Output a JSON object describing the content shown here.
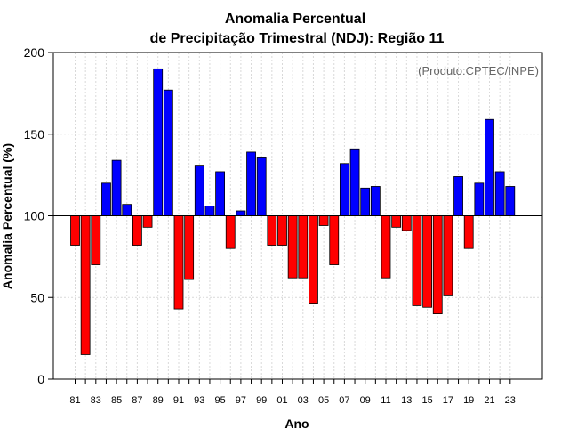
{
  "chart_data": {
    "type": "bar",
    "title_line1": "Anomalia Percentual",
    "title_line2": "de Precipitação Trimestral (NDJ): Região 11",
    "xlabel": "Ano",
    "ylabel": "Anomalia Percentual (%)",
    "credit": "(Produto:CPTEC/INPE)",
    "ylim": [
      0,
      200
    ],
    "yticks": [
      "0",
      "50",
      "100",
      "150",
      "200"
    ],
    "reference_value": 100,
    "colors": {
      "above": "#0000ff",
      "below": "#ff0000",
      "edge": "#000000"
    },
    "categories": [
      "81",
      "82",
      "83",
      "84",
      "85",
      "86",
      "87",
      "88",
      "89",
      "90",
      "91",
      "92",
      "93",
      "94",
      "95",
      "96",
      "97",
      "98",
      "99",
      "00",
      "01",
      "02",
      "03",
      "04",
      "05",
      "06",
      "07",
      "08",
      "09",
      "10",
      "11",
      "12",
      "13",
      "14",
      "15",
      "16",
      "17",
      "18",
      "19",
      "20",
      "21",
      "22",
      "23"
    ],
    "xtick_labels": [
      "81",
      "83",
      "85",
      "87",
      "89",
      "91",
      "93",
      "95",
      "97",
      "99",
      "01",
      "03",
      "05",
      "07",
      "09",
      "11",
      "13",
      "15",
      "17",
      "19",
      "21",
      "23"
    ],
    "values": [
      82,
      15,
      70,
      120,
      134,
      107,
      82,
      93,
      190,
      177,
      43,
      61,
      131,
      106,
      127,
      80,
      103,
      139,
      136,
      82,
      82,
      62,
      62,
      46,
      94,
      70,
      132,
      141,
      117,
      118,
      62,
      93,
      91,
      45,
      44,
      40,
      51,
      124,
      80,
      120,
      159,
      127,
      118
    ]
  }
}
